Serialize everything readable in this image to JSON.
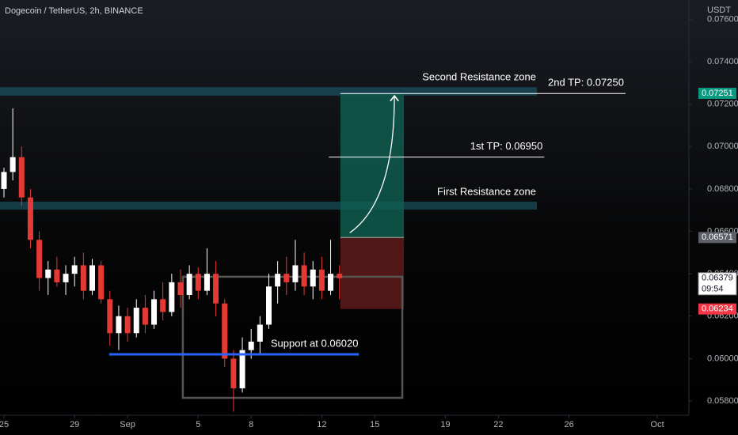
{
  "chart_data": {
    "type": "candlestick",
    "title": "Dogecoin / TetherUS, 2h, BINANCE",
    "currency": "USDT",
    "x": [
      0,
      0.5,
      1,
      1.5,
      2,
      2.5,
      3,
      3.5,
      4,
      4.5,
      5,
      5.5,
      6,
      6.5,
      7,
      7.5,
      8,
      8.5,
      9,
      9.5,
      10,
      10.5,
      11,
      11.5,
      12,
      12.5,
      13,
      13.5,
      14,
      14.5,
      15,
      15.5,
      16,
      16.5,
      17,
      17.5,
      18,
      18.5,
      19
    ],
    "open": [
      0.068,
      0.0688,
      0.0695,
      0.0676,
      0.0656,
      0.0638,
      0.0642,
      0.0636,
      0.064,
      0.0644,
      0.0632,
      0.0644,
      0.0628,
      0.0612,
      0.062,
      0.0612,
      0.0624,
      0.0616,
      0.0628,
      0.0622,
      0.0636,
      0.063,
      0.064,
      0.0632,
      0.064,
      0.0626,
      0.06,
      0.0586,
      0.0604,
      0.0608,
      0.0616,
      0.0634,
      0.064,
      0.0636,
      0.0644,
      0.0634,
      0.0642,
      0.0632,
      0.064
    ],
    "high": [
      0.069,
      0.0718,
      0.07,
      0.068,
      0.066,
      0.0646,
      0.0648,
      0.0644,
      0.0648,
      0.065,
      0.0647,
      0.0646,
      0.0632,
      0.0625,
      0.0624,
      0.0628,
      0.063,
      0.0632,
      0.0636,
      0.064,
      0.0642,
      0.0644,
      0.0643,
      0.0652,
      0.0646,
      0.0628,
      0.0604,
      0.061,
      0.0614,
      0.062,
      0.064,
      0.0646,
      0.0648,
      0.0656,
      0.065,
      0.0646,
      0.0648,
      0.0656,
      0.0644
    ],
    "low": [
      0.0676,
      0.0684,
      0.0672,
      0.0652,
      0.0632,
      0.063,
      0.0634,
      0.063,
      0.0634,
      0.0628,
      0.063,
      0.0626,
      0.0606,
      0.0604,
      0.0608,
      0.061,
      0.0612,
      0.0614,
      0.0618,
      0.062,
      0.0624,
      0.0628,
      0.0628,
      0.063,
      0.062,
      0.0596,
      0.0575,
      0.0584,
      0.06,
      0.0602,
      0.0614,
      0.0626,
      0.063,
      0.0632,
      0.063,
      0.0628,
      0.0628,
      0.063,
      0.0628
    ],
    "close": [
      0.0688,
      0.0695,
      0.0676,
      0.0656,
      0.0638,
      0.0642,
      0.0636,
      0.064,
      0.0644,
      0.0632,
      0.0644,
      0.0628,
      0.0612,
      0.062,
      0.0612,
      0.0624,
      0.0616,
      0.0628,
      0.0622,
      0.0636,
      0.063,
      0.064,
      0.0632,
      0.064,
      0.0626,
      0.06,
      0.0586,
      0.0604,
      0.0608,
      0.0616,
      0.0634,
      0.064,
      0.0636,
      0.0644,
      0.0634,
      0.0642,
      0.0632,
      0.064,
      0.06379
    ],
    "up_color": "#ffffff",
    "down_color": "#e53935",
    "xlim": [
      -0.224,
      38.79
    ],
    "xticks": [
      {
        "value": 0,
        "label": "25"
      },
      {
        "value": 4,
        "label": "29"
      },
      {
        "value": 7,
        "label": "Sep"
      },
      {
        "value": 11,
        "label": "5"
      },
      {
        "value": 14,
        "label": "8"
      },
      {
        "value": 18,
        "label": "12"
      },
      {
        "value": 21,
        "label": "15"
      },
      {
        "value": 25,
        "label": "19"
      },
      {
        "value": 28,
        "label": "22"
      },
      {
        "value": 32,
        "label": "26"
      },
      {
        "value": 37,
        "label": "Oct"
      }
    ],
    "ylim": [
      0.05733,
      0.07691
    ],
    "yticks": [
      {
        "value": 0.058,
        "label": "0.05800"
      },
      {
        "value": 0.06,
        "label": "0.06000"
      },
      {
        "value": 0.062,
        "label": "0.06200"
      },
      {
        "value": 0.064,
        "label": "0.06400"
      },
      {
        "value": 0.066,
        "label": "0.06600"
      },
      {
        "value": 0.068,
        "label": "0.06800"
      },
      {
        "value": 0.07,
        "label": "0.07000"
      },
      {
        "value": 0.072,
        "label": "0.07200"
      },
      {
        "value": 0.074,
        "label": "0.07400"
      },
      {
        "value": 0.076,
        "label": "0.07600"
      }
    ],
    "zones": [
      {
        "label": "Second Resistance zone",
        "top": 0.0728,
        "bottom": 0.0724,
        "color": "#1b5e6e"
      },
      {
        "label": "First Resistance zone",
        "top": 0.0674,
        "bottom": 0.06703,
        "color": "#1b5e6e"
      }
    ],
    "levels": [
      {
        "label": "2nd TP: 0.07250",
        "value": 0.0725,
        "start": 19.05,
        "end": 35.2,
        "color": "#ffffff"
      },
      {
        "label": "1st TP: 0.06950",
        "value": 0.0695,
        "start": 18.4,
        "end": 30.6,
        "color": "#ffffff"
      },
      {
        "label": "Support at 0.06020",
        "value": 0.0602,
        "start": 5.96,
        "end": 20.1,
        "color": "#2962ff"
      }
    ],
    "position": {
      "entry": 0.06571,
      "target": 0.0725,
      "stop": 0.06234,
      "start": 19.05,
      "end": 22.65
    },
    "range_box": {
      "top": 0.06386,
      "bottom": 0.05815,
      "start": 10.13,
      "end": 22.56
    },
    "price_markers": [
      {
        "value": 0.07251,
        "color": "#089981"
      },
      {
        "value": 0.06571,
        "color": "#5d606b"
      },
      {
        "value": 0.06234,
        "color": "#f23645"
      }
    ],
    "last_price": {
      "value": 0.06379,
      "countdown": "09:54"
    }
  }
}
